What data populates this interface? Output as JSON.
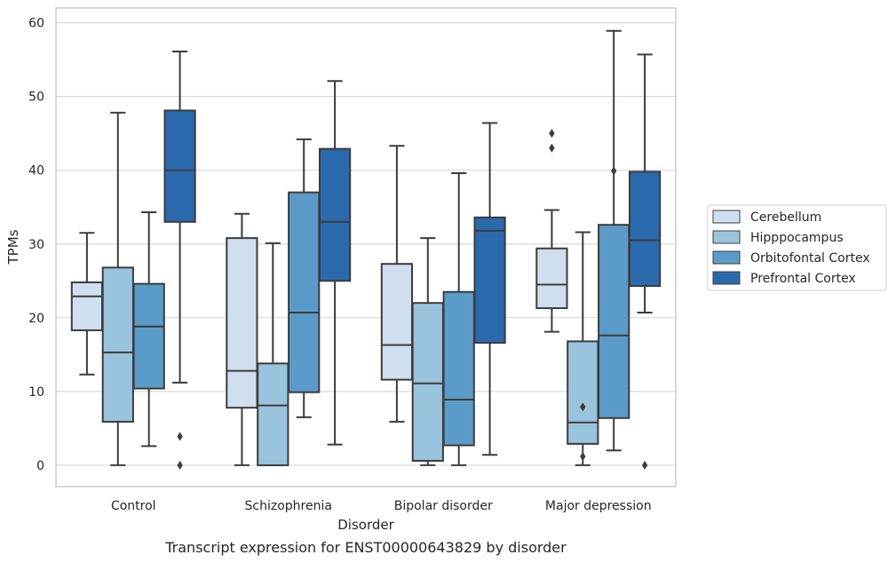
{
  "chart_data": {
    "type": "box",
    "title": "",
    "caption": "Transcript expression for ENST00000643829 by disorder",
    "xlabel": "Disorder",
    "ylabel": "TPMs",
    "ylim": [
      -2.9,
      62
    ],
    "yticks": [
      0,
      10,
      20,
      30,
      40,
      50,
      60
    ],
    "grid": "horizontal",
    "legend_position": "right",
    "categories": [
      "Control",
      "Schizophrenia",
      "Bipolar disorder",
      "Major depression"
    ],
    "series": [
      {
        "name": "Cerebellum",
        "color": "#d0dff0",
        "boxes": [
          {
            "whislo": 12.3,
            "q1": 18.3,
            "med": 22.9,
            "q3": 24.8,
            "whishi": 31.5,
            "fliers": []
          },
          {
            "whislo": 0,
            "q1": 7.8,
            "med": 12.8,
            "q3": 30.8,
            "whishi": 34.1,
            "fliers": []
          },
          {
            "whislo": 5.9,
            "q1": 11.6,
            "med": 16.3,
            "q3": 27.3,
            "whishi": 43.3,
            "fliers": []
          },
          {
            "whislo": 18.1,
            "q1": 21.3,
            "med": 24.5,
            "q3": 29.4,
            "whishi": 34.6,
            "fliers": [
              45.0,
              43.0
            ]
          }
        ]
      },
      {
        "name": "Hipppocampus",
        "color": "#9ac3de",
        "boxes": [
          {
            "whislo": 0,
            "q1": 5.9,
            "med": 15.3,
            "q3": 26.8,
            "whishi": 47.8,
            "fliers": []
          },
          {
            "whislo": 0,
            "q1": 0,
            "med": 8.1,
            "q3": 13.8,
            "whishi": 30.1,
            "fliers": []
          },
          {
            "whislo": 0,
            "q1": 0.6,
            "med": 11.1,
            "q3": 22.0,
            "whishi": 30.8,
            "fliers": []
          },
          {
            "whislo": 0,
            "q1": 2.9,
            "med": 5.8,
            "q3": 16.8,
            "whishi": 31.6,
            "fliers": [
              7.9,
              1.2
            ]
          }
        ]
      },
      {
        "name": "Orbitofontal Cortex",
        "color": "#5b9bc9",
        "boxes": [
          {
            "whislo": 2.6,
            "q1": 10.4,
            "med": 18.8,
            "q3": 24.6,
            "whishi": 34.3,
            "fliers": []
          },
          {
            "whislo": 6.5,
            "q1": 9.9,
            "med": 20.7,
            "q3": 37.0,
            "whishi": 44.2,
            "fliers": []
          },
          {
            "whislo": 0,
            "q1": 2.7,
            "med": 8.9,
            "q3": 23.5,
            "whishi": 39.6,
            "fliers": []
          },
          {
            "whislo": 2.0,
            "q1": 6.4,
            "med": 17.6,
            "q3": 32.6,
            "whishi": 58.9,
            "fliers": [
              39.9
            ]
          }
        ]
      },
      {
        "name": "Prefrontal Cortex",
        "color": "#2a6aac",
        "boxes": [
          {
            "whislo": 11.2,
            "q1": 33.0,
            "med": 40.0,
            "q3": 48.1,
            "whishi": 56.1,
            "fliers": [
              3.9,
              0.0
            ]
          },
          {
            "whislo": 2.8,
            "q1": 25.0,
            "med": 33.0,
            "q3": 42.9,
            "whishi": 52.1,
            "fliers": []
          },
          {
            "whislo": 1.4,
            "q1": 16.6,
            "med": 31.8,
            "q3": 33.6,
            "whishi": 46.4,
            "fliers": []
          },
          {
            "whislo": 20.7,
            "q1": 24.3,
            "med": 30.5,
            "q3": 39.8,
            "whishi": 55.7,
            "fliers": [
              0.0
            ]
          }
        ]
      }
    ]
  }
}
